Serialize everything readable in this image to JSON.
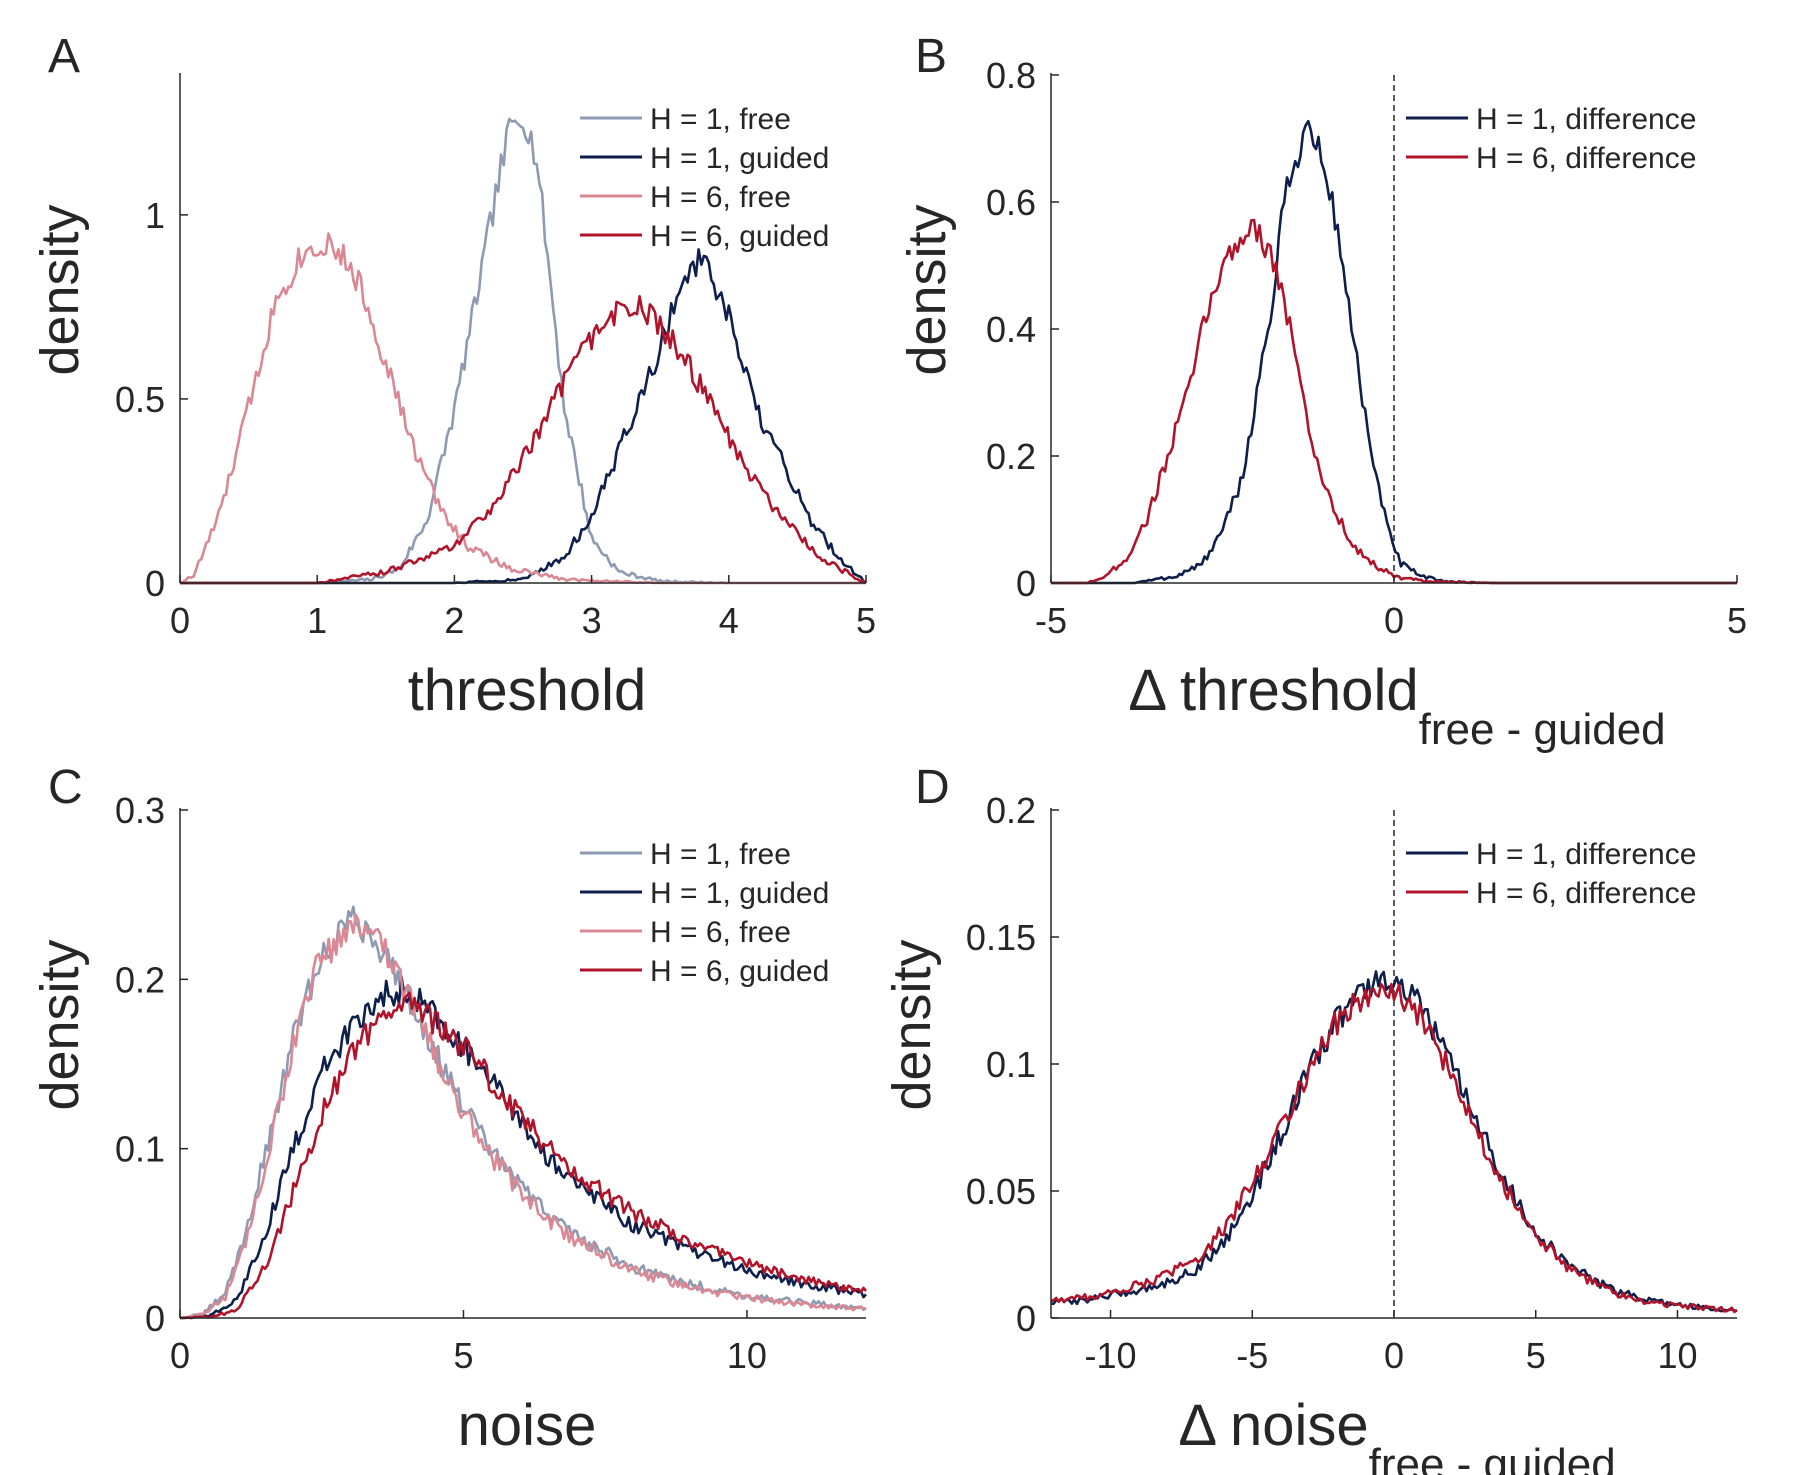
{
  "colors": {
    "h1_free": "#8E9AB2",
    "h1_guided": "#0D1F4A",
    "h6_free": "#DA8893",
    "h6_guided": "#B0142B",
    "axis": "#262626"
  },
  "chart_data": [
    {
      "panel": "A",
      "type": "line",
      "xlabel": "threshold",
      "ylabel": "density",
      "xlim": [
        0,
        5
      ],
      "ylim": [
        0,
        1.38
      ],
      "xticks": [
        "0",
        "1",
        "2",
        "3",
        "4",
        "5"
      ],
      "yticks": [
        "0",
        "0.5",
        "1"
      ],
      "grid": false,
      "legend_position": "top-right",
      "series": [
        {
          "name": "H = 1, free",
          "color_key": "h1_free",
          "x": [
            0,
            1.0,
            1.4,
            1.6,
            1.8,
            2.0,
            2.2,
            2.3,
            2.4,
            2.5,
            2.6,
            2.7,
            2.8,
            3.0,
            3.2,
            3.5,
            4.0,
            5.0
          ],
          "y": [
            0,
            0,
            0.01,
            0.04,
            0.17,
            0.47,
            0.85,
            1.05,
            1.23,
            1.28,
            1.15,
            0.82,
            0.48,
            0.12,
            0.03,
            0.005,
            0,
            0
          ]
        },
        {
          "name": "H = 1, guided",
          "color_key": "h1_guided",
          "x": [
            0,
            2.0,
            2.5,
            2.8,
            3.0,
            3.2,
            3.4,
            3.5,
            3.6,
            3.7,
            3.8,
            4.0,
            4.2,
            4.4,
            4.6,
            4.8,
            5.0
          ],
          "y": [
            0,
            0,
            0.01,
            0.07,
            0.18,
            0.36,
            0.54,
            0.64,
            0.75,
            0.85,
            0.88,
            0.72,
            0.47,
            0.32,
            0.17,
            0.07,
            0
          ]
        },
        {
          "name": "H = 6, free",
          "color_key": "h6_free",
          "x": [
            0,
            0.1,
            0.3,
            0.5,
            0.7,
            0.9,
            1.1,
            1.3,
            1.5,
            1.7,
            1.9,
            2.1,
            2.4,
            2.8,
            3.5,
            5.0
          ],
          "y": [
            0,
            0.02,
            0.2,
            0.48,
            0.77,
            0.9,
            0.93,
            0.82,
            0.6,
            0.37,
            0.2,
            0.1,
            0.04,
            0.01,
            0,
            0
          ]
        },
        {
          "name": "H = 6, guided",
          "color_key": "h6_guided",
          "x": [
            0,
            1.0,
            1.5,
            2.0,
            2.3,
            2.6,
            2.8,
            3.0,
            3.2,
            3.35,
            3.5,
            3.7,
            3.9,
            4.1,
            4.3,
            4.5,
            4.7,
            4.9,
            5.0
          ],
          "y": [
            0,
            0,
            0.03,
            0.1,
            0.22,
            0.4,
            0.55,
            0.66,
            0.74,
            0.75,
            0.7,
            0.6,
            0.46,
            0.33,
            0.22,
            0.13,
            0.06,
            0.02,
            0
          ]
        }
      ]
    },
    {
      "panel": "B",
      "type": "line",
      "xlabel": "Δ threshold",
      "xlabel_sub": "free - guided",
      "ylabel": "density",
      "xlim": [
        -5,
        5
      ],
      "ylim": [
        0,
        0.8
      ],
      "xticks": [
        "-5",
        "0",
        "5"
      ],
      "yticks": [
        "0",
        "0.2",
        "0.4",
        "0.6",
        "0.8"
      ],
      "grid": false,
      "ref_line_x": 0,
      "legend_position": "top-right",
      "series": [
        {
          "name": "H = 1, difference",
          "color_key": "h1_guided",
          "x": [
            -5,
            -3.8,
            -3.2,
            -2.8,
            -2.5,
            -2.2,
            -2.0,
            -1.8,
            -1.6,
            -1.4,
            -1.25,
            -1.1,
            -0.9,
            -0.7,
            -0.5,
            -0.3,
            -0.1,
            0.1,
            0.4,
            0.8,
            1.5,
            5
          ],
          "y": [
            0,
            0,
            0.01,
            0.03,
            0.08,
            0.17,
            0.3,
            0.42,
            0.6,
            0.68,
            0.72,
            0.68,
            0.6,
            0.47,
            0.32,
            0.18,
            0.09,
            0.03,
            0.01,
            0.002,
            0,
            0
          ]
        },
        {
          "name": "H = 6, difference",
          "color_key": "h6_guided",
          "x": [
            -5,
            -4.5,
            -4.2,
            -3.9,
            -3.6,
            -3.3,
            -3.0,
            -2.7,
            -2.4,
            -2.2,
            -2.0,
            -1.8,
            -1.6,
            -1.4,
            -1.2,
            -1.0,
            -0.8,
            -0.6,
            -0.3,
            0,
            0.5,
            1.5,
            5
          ],
          "y": [
            0,
            0,
            0.01,
            0.04,
            0.1,
            0.2,
            0.3,
            0.44,
            0.52,
            0.55,
            0.56,
            0.52,
            0.45,
            0.33,
            0.22,
            0.15,
            0.1,
            0.06,
            0.03,
            0.01,
            0.002,
            0,
            0
          ]
        }
      ]
    },
    {
      "panel": "C",
      "type": "line",
      "xlabel": "noise",
      "ylabel": "density",
      "xlim": [
        0,
        12.1
      ],
      "ylim": [
        0,
        0.3
      ],
      "xticks": [
        "0",
        "5",
        "10"
      ],
      "yticks": [
        "0",
        "0.1",
        "0.2",
        "0.3"
      ],
      "grid": false,
      "legend_position": "top-right",
      "series": [
        {
          "name": "H = 1, free",
          "color_key": "h1_free",
          "x": [
            0,
            0.4,
            0.8,
            1.2,
            1.6,
            2.0,
            2.4,
            2.8,
            3.1,
            3.4,
            3.8,
            4.2,
            4.6,
            5.0,
            5.5,
            6.0,
            6.5,
            7.0,
            8.0,
            9.0,
            10.0,
            11.0,
            12.1
          ],
          "y": [
            0,
            0.002,
            0.015,
            0.055,
            0.11,
            0.165,
            0.205,
            0.23,
            0.235,
            0.225,
            0.205,
            0.178,
            0.15,
            0.125,
            0.098,
            0.078,
            0.062,
            0.048,
            0.03,
            0.02,
            0.013,
            0.009,
            0.006
          ]
        },
        {
          "name": "H = 1, guided",
          "color_key": "h1_guided",
          "x": [
            0,
            0.5,
            1.0,
            1.5,
            2.0,
            2.5,
            3.0,
            3.5,
            4.0,
            4.5,
            5.0,
            5.5,
            6.0,
            6.5,
            7.0,
            8.0,
            9.0,
            10.0,
            11.0,
            12.1
          ],
          "y": [
            0,
            0.001,
            0.01,
            0.05,
            0.1,
            0.145,
            0.17,
            0.19,
            0.195,
            0.18,
            0.16,
            0.14,
            0.115,
            0.095,
            0.078,
            0.055,
            0.04,
            0.028,
            0.02,
            0.014
          ]
        },
        {
          "name": "H = 6, free",
          "color_key": "h6_free",
          "x": [
            0,
            0.4,
            0.8,
            1.2,
            1.6,
            2.0,
            2.4,
            2.8,
            3.1,
            3.4,
            3.8,
            4.2,
            4.6,
            5.0,
            5.5,
            6.0,
            6.5,
            7.0,
            8.0,
            9.0,
            10.0,
            11.0,
            12.1
          ],
          "y": [
            0,
            0.002,
            0.012,
            0.05,
            0.105,
            0.16,
            0.205,
            0.225,
            0.23,
            0.228,
            0.205,
            0.178,
            0.148,
            0.122,
            0.095,
            0.075,
            0.058,
            0.045,
            0.028,
            0.018,
            0.012,
            0.008,
            0.005
          ]
        },
        {
          "name": "H = 6, guided",
          "color_key": "h6_guided",
          "x": [
            0,
            0.6,
            1.0,
            1.5,
            2.0,
            2.5,
            3.0,
            3.5,
            4.0,
            4.5,
            5.0,
            5.5,
            6.0,
            6.5,
            7.0,
            8.0,
            9.0,
            10.0,
            11.0,
            12.1
          ],
          "y": [
            0,
            0.001,
            0.005,
            0.03,
            0.075,
            0.12,
            0.155,
            0.175,
            0.185,
            0.175,
            0.16,
            0.14,
            0.12,
            0.1,
            0.085,
            0.062,
            0.045,
            0.032,
            0.023,
            0.016
          ]
        }
      ]
    },
    {
      "panel": "D",
      "type": "line",
      "xlabel": "Δ noise",
      "xlabel_sub": "free - guided",
      "ylabel": "density",
      "xlim": [
        -12.1,
        12.1
      ],
      "ylim": [
        0,
        0.2
      ],
      "xticks": [
        "-10",
        "-5",
        "0",
        "5",
        "10"
      ],
      "yticks": [
        "0",
        "0.05",
        "0.1",
        "0.15",
        "0.2"
      ],
      "grid": false,
      "ref_line_x": 0,
      "legend_position": "top-right",
      "series": [
        {
          "name": "H = 1, difference",
          "color_key": "h1_guided",
          "x": [
            -12.1,
            -11,
            -10,
            -9,
            -8,
            -7,
            -6,
            -5,
            -4,
            -3,
            -2,
            -1,
            0,
            1,
            2,
            3,
            4,
            5,
            6,
            7,
            8,
            9,
            10,
            11,
            12.1
          ],
          "y": [
            0.006,
            0.007,
            0.009,
            0.011,
            0.014,
            0.019,
            0.03,
            0.048,
            0.072,
            0.097,
            0.118,
            0.13,
            0.133,
            0.122,
            0.1,
            0.075,
            0.052,
            0.034,
            0.022,
            0.015,
            0.01,
            0.007,
            0.005,
            0.004,
            0.003
          ]
        },
        {
          "name": "H = 6, difference",
          "color_key": "h6_guided",
          "x": [
            -12.1,
            -11,
            -10,
            -9,
            -8,
            -7,
            -6,
            -5,
            -4,
            -3,
            -2,
            -1,
            0,
            1,
            2,
            3,
            4,
            5,
            6,
            7,
            8,
            9,
            10,
            11,
            12.1
          ],
          "y": [
            0.007,
            0.008,
            0.01,
            0.013,
            0.017,
            0.023,
            0.035,
            0.053,
            0.075,
            0.098,
            0.117,
            0.127,
            0.128,
            0.117,
            0.097,
            0.072,
            0.05,
            0.033,
            0.021,
            0.014,
            0.009,
            0.006,
            0.005,
            0.004,
            0.003
          ]
        }
      ]
    }
  ],
  "panel_letters": [
    "A",
    "B",
    "C",
    "D"
  ]
}
